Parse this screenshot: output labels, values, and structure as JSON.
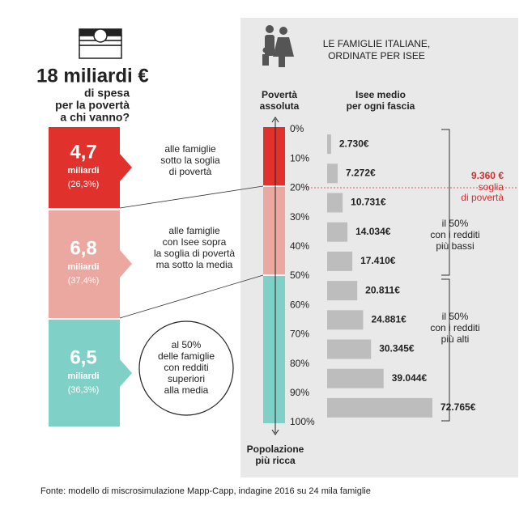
{
  "left": {
    "headline": "18 miliardi €",
    "subtitle": [
      "di spesa",
      "per la povertà",
      "a chi vanno?"
    ],
    "groups": [
      {
        "amount": "4,7",
        "unit": "miliardi",
        "share": "(26,3%)",
        "description": [
          "alle famiglie",
          "sotto la soglia",
          "di povertà"
        ]
      },
      {
        "amount": "6,8",
        "unit": "miliardi",
        "share": "(37,4%)",
        "description": [
          "alle famiglie",
          "con Isee sopra",
          "la soglia di povertà",
          "ma sotto la media"
        ]
      },
      {
        "amount": "6,5",
        "unit": "miliardi",
        "share": "(36,3%)",
        "description": [
          "al 50%",
          "delle famiglie",
          "con redditi",
          "superiori",
          "alla media"
        ]
      }
    ]
  },
  "panel": {
    "title": [
      "LE FAMIGLIE ITALIANE,",
      "ORDINATE PER ISEE"
    ],
    "column_label": [
      "Povertà",
      "assoluta"
    ],
    "bottom_label": [
      "Popolazione",
      "più ricca"
    ],
    "scale_labels": [
      "0%",
      "10%",
      "20%",
      "30%",
      "40%",
      "50%",
      "60%",
      "70%",
      "80%",
      "90%",
      "100%"
    ],
    "threshold": {
      "value_label": "9.360 €",
      "label": [
        "soglia",
        "di povertà"
      ]
    },
    "brackets": [
      [
        "il 50%",
        "con i redditi",
        "più bassi"
      ],
      [
        "il 50%",
        "con i redditi",
        "più alti"
      ]
    ]
  },
  "chart_data": {
    "type": "bar",
    "orientation": "horizontal",
    "title": [
      "Isee medio",
      "per ogni fascia"
    ],
    "categories": [
      null,
      null,
      null,
      null,
      null,
      null,
      null,
      null,
      null,
      null
    ],
    "values": [
      2730,
      7272,
      10731,
      14034,
      17410,
      20811,
      24881,
      30345,
      39044,
      72765
    ],
    "value_labels": [
      "2.730€",
      "7.272€",
      "10.731€",
      "14.034€",
      "17.410€",
      "20.811€",
      "24.881€",
      "30.345€",
      "39.044€",
      "72.765€"
    ],
    "color": "#bdbdbd"
  },
  "source": "Fonte: modello di miscrosimulazione Mapp-Capp, indagine 2016 su 24 mila famiglie"
}
